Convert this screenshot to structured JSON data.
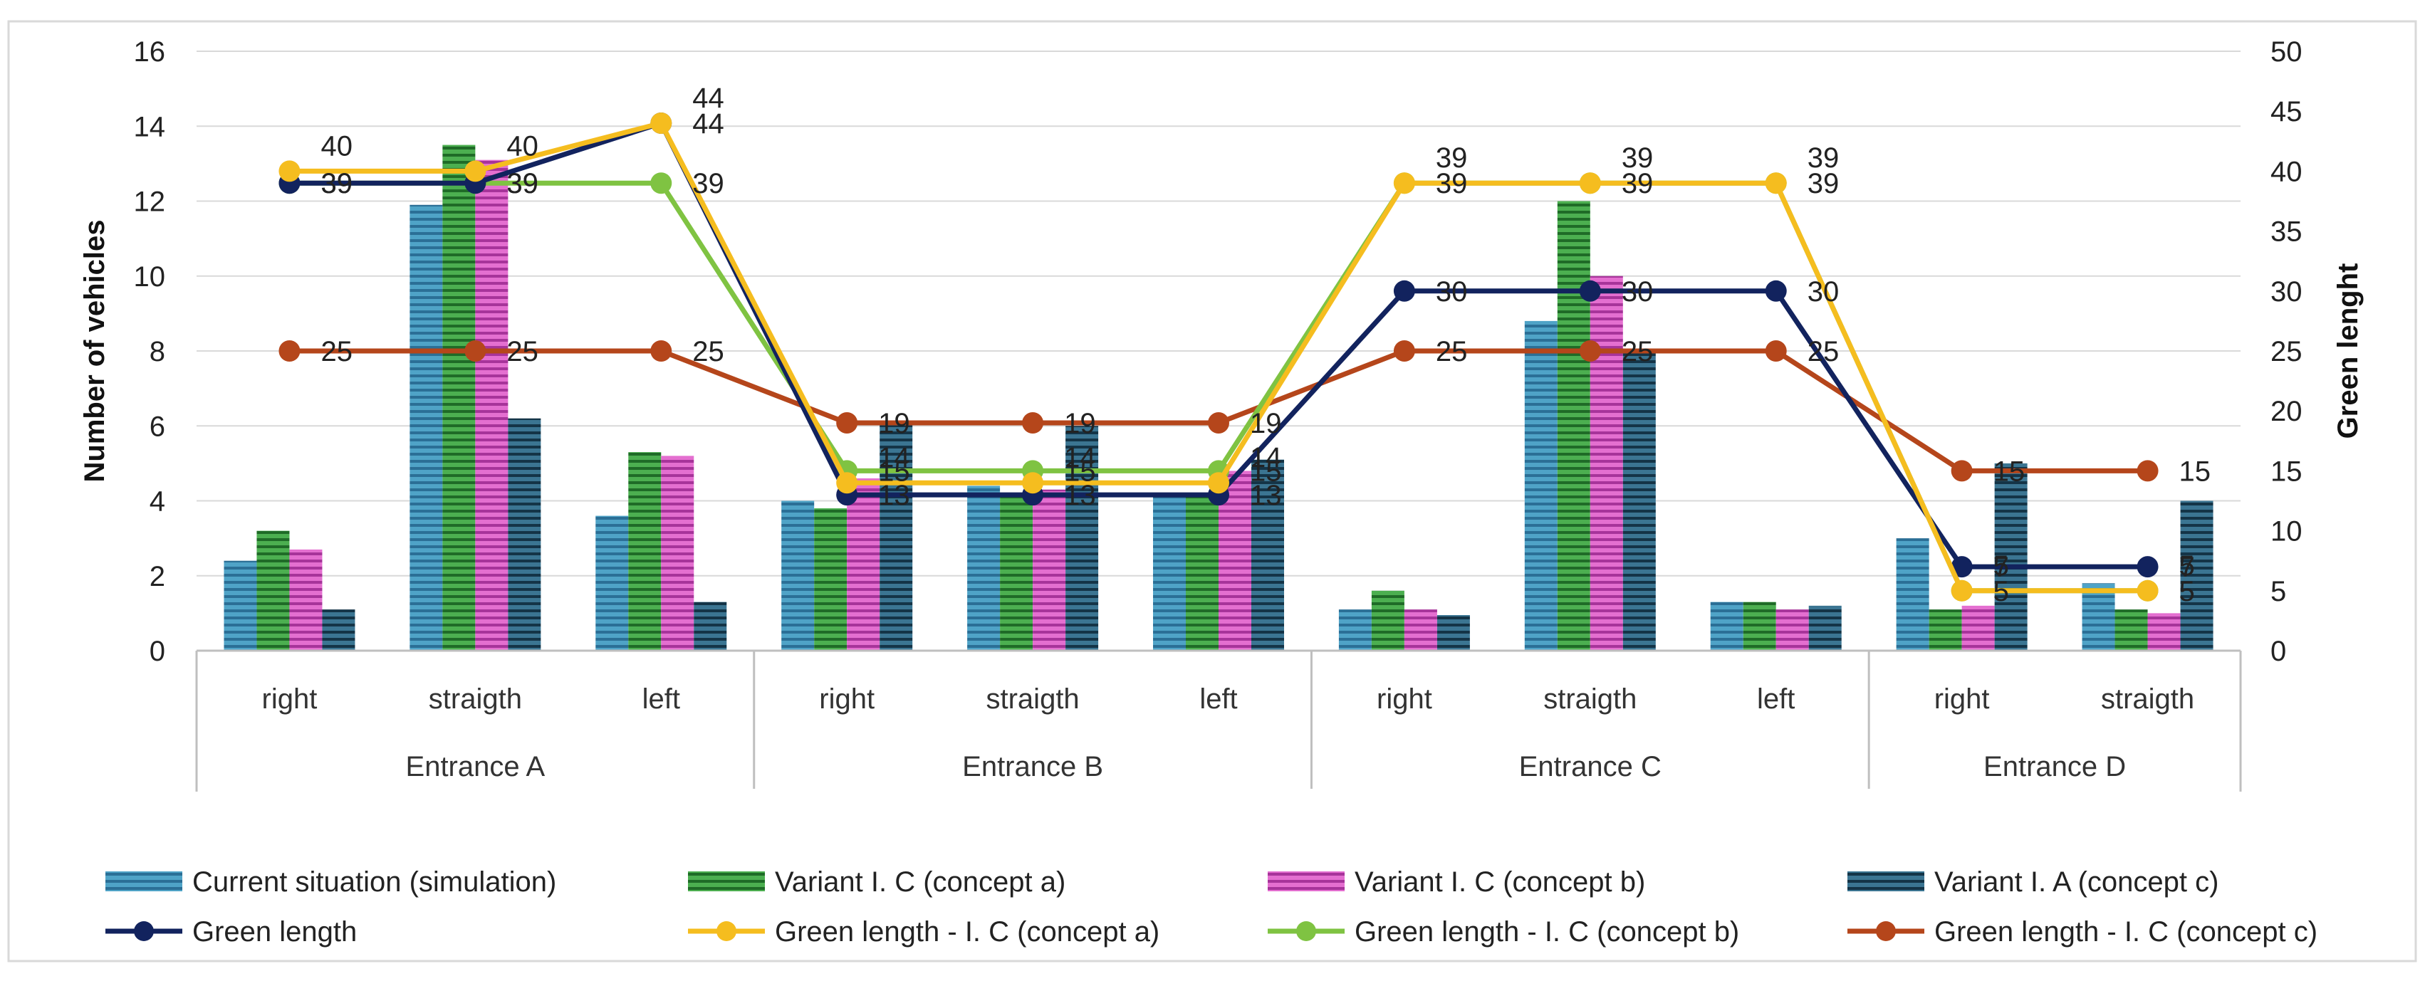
{
  "chart_data": {
    "type": "bar",
    "title": "",
    "ylabel": "Number of vehicles",
    "y2label": "Green lenght",
    "ylim": [
      0,
      16
    ],
    "y2lim": [
      0,
      50
    ],
    "yticks": [
      "0",
      "2",
      "4",
      "6",
      "8",
      "10",
      "12",
      "14",
      "16"
    ],
    "y2ticks": [
      "0",
      "5",
      "10",
      "15",
      "20",
      "25",
      "30",
      "35",
      "40",
      "45",
      "50"
    ],
    "groups": [
      {
        "label": "Entrance A",
        "categories": [
          "right",
          "straigth",
          "left"
        ]
      },
      {
        "label": "Entrance B",
        "categories": [
          "right",
          "straigth",
          "left"
        ]
      },
      {
        "label": "Entrance C",
        "categories": [
          "right",
          "straigth",
          "left"
        ]
      },
      {
        "label": "Entrance D",
        "categories": [
          "right",
          "straigth"
        ]
      }
    ],
    "bar_series": [
      {
        "name": "Current situation (simulation)",
        "color": "#4fa3c7",
        "values": [
          2.4,
          11.9,
          3.6,
          4.0,
          4.4,
          4.1,
          1.1,
          8.8,
          1.3,
          3.0,
          1.8
        ]
      },
      {
        "name": "Variant I. C (concept a)",
        "color": "#3f9a48",
        "values": [
          3.2,
          13.5,
          5.3,
          3.8,
          4.1,
          4.2,
          1.6,
          12.0,
          1.3,
          1.1,
          1.1
        ]
      },
      {
        "name": "Variant I. C (concept b)",
        "color": "#d65fc2",
        "values": [
          2.7,
          13.1,
          5.2,
          4.6,
          4.3,
          4.8,
          1.1,
          10.0,
          1.1,
          1.2,
          1.0
        ]
      },
      {
        "name": "Variant I. A (concept c)",
        "color": "#2e5f78",
        "values": [
          1.1,
          6.2,
          1.3,
          6.1,
          6.0,
          5.1,
          0.95,
          8.0,
          1.2,
          5.0,
          4.0
        ]
      }
    ],
    "line_series": [
      {
        "name": "Green length",
        "color": "#12235e",
        "values": [
          39,
          39,
          44,
          13,
          13,
          13,
          30,
          30,
          30,
          7,
          7
        ],
        "labels": [
          "39",
          "39",
          "44",
          "13",
          "13",
          "13",
          "30",
          "30",
          "30",
          "7",
          "7"
        ]
      },
      {
        "name": "Green length - I. C (concept a)",
        "color": "#f5bd1f",
        "values": [
          40,
          40,
          44,
          14,
          14,
          14,
          39,
          39,
          39,
          5,
          5
        ],
        "labels": [
          "40",
          "40",
          "44",
          "14",
          "14",
          "14",
          "39",
          "39",
          "39",
          "5",
          "5"
        ]
      },
      {
        "name": "Green length - I. C (concept b)",
        "color": "#7fc342",
        "values": [
          39,
          39,
          39,
          15,
          15,
          15,
          39,
          39,
          39,
          5,
          5
        ],
        "labels": [
          "39",
          "39",
          "39",
          "15",
          "15",
          "15",
          "39",
          "39",
          "39",
          "5",
          "5"
        ]
      },
      {
        "name": "Green length - I. C (concept c)",
        "color": "#b5461b",
        "values": [
          25,
          25,
          25,
          19,
          19,
          19,
          25,
          25,
          25,
          15,
          15
        ],
        "labels": [
          "25",
          "25",
          "25",
          "19",
          "19",
          "19",
          "25",
          "25",
          "25",
          "15",
          "15"
        ]
      }
    ],
    "legend_position": "bottom"
  }
}
